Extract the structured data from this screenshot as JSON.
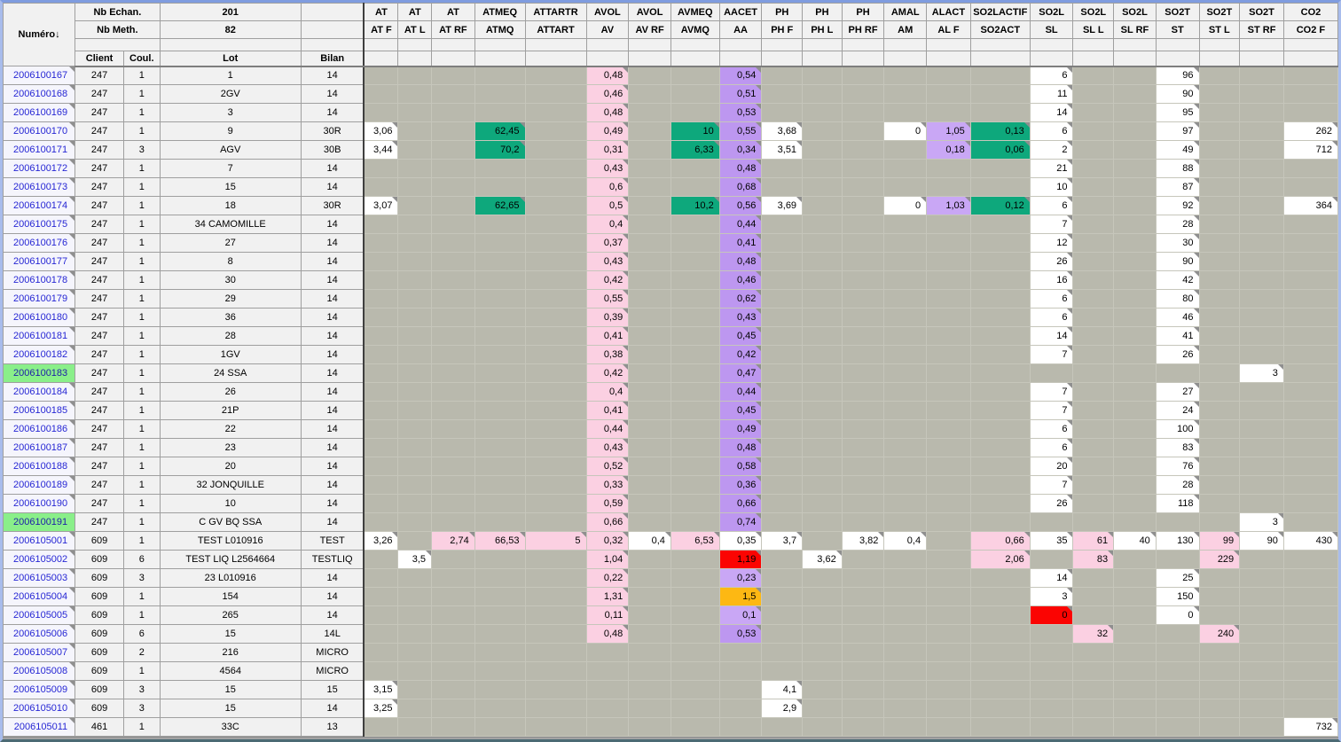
{
  "grid": {
    "corner_label": "Numéro↓",
    "summary": {
      "nb_echan_label": "Nb Echan.",
      "nb_echan_value": "201",
      "nb_meth_label": "Nb Meth.",
      "nb_meth_value": "82"
    },
    "fixed_columns": [
      "Client",
      "Coul.",
      "Lot",
      "Bilan"
    ],
    "analysis_columns": [
      {
        "key": "ATF",
        "group": "AT",
        "code": "AT F"
      },
      {
        "key": "ATL",
        "group": "AT",
        "code": "AT L"
      },
      {
        "key": "ATRF",
        "group": "AT",
        "code": "AT RF"
      },
      {
        "key": "ATMQ",
        "group": "ATMEQ",
        "code": "ATMQ"
      },
      {
        "key": "ATTART",
        "group": "ATTARTR",
        "code": "ATTART"
      },
      {
        "key": "AV",
        "group": "AVOL",
        "code": "AV"
      },
      {
        "key": "AVRF",
        "group": "AVOL",
        "code": "AV RF"
      },
      {
        "key": "AVMQ",
        "group": "AVMEQ",
        "code": "AVMQ"
      },
      {
        "key": "AA",
        "group": "AACET",
        "code": "AA"
      },
      {
        "key": "PHF",
        "group": "PH",
        "code": "PH F"
      },
      {
        "key": "PHL",
        "group": "PH",
        "code": "PH L"
      },
      {
        "key": "PHRF",
        "group": "PH",
        "code": "PH RF"
      },
      {
        "key": "AM",
        "group": "AMAL",
        "code": "AM"
      },
      {
        "key": "ALF",
        "group": "ALACT",
        "code": "AL F"
      },
      {
        "key": "SO2ACT",
        "group": "SO2LACTIF",
        "code": "SO2ACT"
      },
      {
        "key": "SL",
        "group": "SO2L",
        "code": "SL"
      },
      {
        "key": "SLL",
        "group": "SO2L",
        "code": "SL L"
      },
      {
        "key": "SLRF",
        "group": "SO2L",
        "code": "SL RF"
      },
      {
        "key": "ST",
        "group": "SO2T",
        "code": "ST"
      },
      {
        "key": "STL",
        "group": "SO2T",
        "code": "ST L"
      },
      {
        "key": "STRF",
        "group": "SO2T",
        "code": "ST RF"
      },
      {
        "key": "CO2F",
        "group": "CO2",
        "code": "CO2 F"
      }
    ],
    "colors": {
      "empty_cell": "#b9b9ad",
      "white": "#ffffff",
      "pink": "#fbd0e2",
      "purple": "#bd97f0",
      "light_purple": "#c9a7f5",
      "green": "#0ea87c",
      "red": "#fb0402",
      "orange": "#fdb813",
      "row_highlight": "#8aef8a",
      "number_text": "#2626d4"
    },
    "rows": [
      {
        "n": "2006100167",
        "c": "247",
        "co": "1",
        "l": "1",
        "b": "14",
        "v": {
          "AV": [
            "0,48",
            "p"
          ],
          "AA": [
            "0,54",
            "v"
          ],
          "SL": [
            "6",
            "w"
          ],
          "ST": [
            "96",
            "w"
          ]
        }
      },
      {
        "n": "2006100168",
        "c": "247",
        "co": "1",
        "l": "2GV",
        "b": "14",
        "v": {
          "AV": [
            "0,46",
            "p"
          ],
          "AA": [
            "0,51",
            "v"
          ],
          "SL": [
            "11",
            "w"
          ],
          "ST": [
            "90",
            "w"
          ]
        }
      },
      {
        "n": "2006100169",
        "c": "247",
        "co": "1",
        "l": "3",
        "b": "14",
        "v": {
          "AV": [
            "0,48",
            "p"
          ],
          "AA": [
            "0,53",
            "v"
          ],
          "SL": [
            "14",
            "w"
          ],
          "ST": [
            "95",
            "w"
          ]
        }
      },
      {
        "n": "2006100170",
        "c": "247",
        "co": "1",
        "l": "9",
        "b": "30R",
        "v": {
          "ATF": [
            "3,06",
            "w"
          ],
          "ATMQ": [
            "62,45",
            "g"
          ],
          "AV": [
            "0,49",
            "p"
          ],
          "AVMQ": [
            "10",
            "g"
          ],
          "AA": [
            "0,55",
            "v"
          ],
          "PHF": [
            "3,68",
            "w"
          ],
          "AM": [
            "0",
            "w"
          ],
          "ALF": [
            "1,05",
            "l"
          ],
          "SO2ACT": [
            "0,13",
            "g"
          ],
          "SL": [
            "6",
            "w"
          ],
          "ST": [
            "97",
            "w"
          ],
          "CO2F": [
            "262",
            "w"
          ]
        }
      },
      {
        "n": "2006100171",
        "c": "247",
        "co": "3",
        "l": "AGV",
        "b": "30B",
        "v": {
          "ATF": [
            "3,44",
            "w"
          ],
          "ATMQ": [
            "70,2",
            "g"
          ],
          "AV": [
            "0,31",
            "p"
          ],
          "AVMQ": [
            "6,33",
            "g"
          ],
          "AA": [
            "0,34",
            "v"
          ],
          "PHF": [
            "3,51",
            "w"
          ],
          "ALF": [
            "0,18",
            "l"
          ],
          "SO2ACT": [
            "0,06",
            "g"
          ],
          "SL": [
            "2",
            "w"
          ],
          "ST": [
            "49",
            "w"
          ],
          "CO2F": [
            "712",
            "w"
          ]
        }
      },
      {
        "n": "2006100172",
        "c": "247",
        "co": "1",
        "l": "7",
        "b": "14",
        "v": {
          "AV": [
            "0,43",
            "p"
          ],
          "AA": [
            "0,48",
            "v"
          ],
          "SL": [
            "21",
            "w"
          ],
          "ST": [
            "88",
            "w"
          ]
        }
      },
      {
        "n": "2006100173",
        "c": "247",
        "co": "1",
        "l": "15",
        "b": "14",
        "v": {
          "AV": [
            "0,6",
            "p"
          ],
          "AA": [
            "0,68",
            "v"
          ],
          "SL": [
            "10",
            "w"
          ],
          "ST": [
            "87",
            "w"
          ]
        }
      },
      {
        "n": "2006100174",
        "c": "247",
        "co": "1",
        "l": "18",
        "b": "30R",
        "v": {
          "ATF": [
            "3,07",
            "w"
          ],
          "ATMQ": [
            "62,65",
            "g"
          ],
          "AV": [
            "0,5",
            "p"
          ],
          "AVMQ": [
            "10,2",
            "g"
          ],
          "AA": [
            "0,56",
            "v"
          ],
          "PHF": [
            "3,69",
            "w"
          ],
          "AM": [
            "0",
            "w"
          ],
          "ALF": [
            "1,03",
            "l"
          ],
          "SO2ACT": [
            "0,12",
            "g"
          ],
          "SL": [
            "6",
            "w"
          ],
          "ST": [
            "92",
            "w"
          ],
          "CO2F": [
            "364",
            "w"
          ]
        }
      },
      {
        "n": "2006100175",
        "c": "247",
        "co": "1",
        "l": "34 CAMOMILLE",
        "b": "14",
        "v": {
          "AV": [
            "0,4",
            "p"
          ],
          "AA": [
            "0,44",
            "v"
          ],
          "SL": [
            "7",
            "w"
          ],
          "ST": [
            "28",
            "w"
          ]
        }
      },
      {
        "n": "2006100176",
        "c": "247",
        "co": "1",
        "l": "27",
        "b": "14",
        "v": {
          "AV": [
            "0,37",
            "p"
          ],
          "AA": [
            "0,41",
            "v"
          ],
          "SL": [
            "12",
            "w"
          ],
          "ST": [
            "30",
            "w"
          ]
        }
      },
      {
        "n": "2006100177",
        "c": "247",
        "co": "1",
        "l": "8",
        "b": "14",
        "v": {
          "AV": [
            "0,43",
            "p"
          ],
          "AA": [
            "0,48",
            "v"
          ],
          "SL": [
            "26",
            "w"
          ],
          "ST": [
            "90",
            "w"
          ]
        }
      },
      {
        "n": "2006100178",
        "c": "247",
        "co": "1",
        "l": "30",
        "b": "14",
        "v": {
          "AV": [
            "0,42",
            "p"
          ],
          "AA": [
            "0,46",
            "v"
          ],
          "SL": [
            "16",
            "w"
          ],
          "ST": [
            "42",
            "w"
          ]
        }
      },
      {
        "n": "2006100179",
        "c": "247",
        "co": "1",
        "l": "29",
        "b": "14",
        "v": {
          "AV": [
            "0,55",
            "p"
          ],
          "AA": [
            "0,62",
            "v"
          ],
          "SL": [
            "6",
            "w"
          ],
          "ST": [
            "80",
            "w"
          ]
        }
      },
      {
        "n": "2006100180",
        "c": "247",
        "co": "1",
        "l": "36",
        "b": "14",
        "v": {
          "AV": [
            "0,39",
            "p"
          ],
          "AA": [
            "0,43",
            "v"
          ],
          "SL": [
            "6",
            "w"
          ],
          "ST": [
            "46",
            "w"
          ]
        }
      },
      {
        "n": "2006100181",
        "c": "247",
        "co": "1",
        "l": "28",
        "b": "14",
        "v": {
          "AV": [
            "0,41",
            "p"
          ],
          "AA": [
            "0,45",
            "v"
          ],
          "SL": [
            "14",
            "w"
          ],
          "ST": [
            "41",
            "w"
          ]
        }
      },
      {
        "n": "2006100182",
        "c": "247",
        "co": "1",
        "l": "1GV",
        "b": "14",
        "v": {
          "AV": [
            "0,38",
            "p"
          ],
          "AA": [
            "0,42",
            "v"
          ],
          "SL": [
            "7",
            "w"
          ],
          "ST": [
            "26",
            "w"
          ]
        }
      },
      {
        "n": "2006100183",
        "h": true,
        "c": "247",
        "co": "1",
        "l": "24 SSA",
        "b": "14",
        "v": {
          "AV": [
            "0,42",
            "p"
          ],
          "AA": [
            "0,47",
            "v"
          ],
          "STRF": [
            "3",
            "w"
          ]
        }
      },
      {
        "n": "2006100184",
        "c": "247",
        "co": "1",
        "l": "26",
        "b": "14",
        "v": {
          "AV": [
            "0,4",
            "p"
          ],
          "AA": [
            "0,44",
            "v"
          ],
          "SL": [
            "7",
            "w"
          ],
          "ST": [
            "27",
            "w"
          ]
        }
      },
      {
        "n": "2006100185",
        "c": "247",
        "co": "1",
        "l": "21P",
        "b": "14",
        "v": {
          "AV": [
            "0,41",
            "p"
          ],
          "AA": [
            "0,45",
            "v"
          ],
          "SL": [
            "7",
            "w"
          ],
          "ST": [
            "24",
            "w"
          ]
        }
      },
      {
        "n": "2006100186",
        "c": "247",
        "co": "1",
        "l": "22",
        "b": "14",
        "v": {
          "AV": [
            "0,44",
            "p"
          ],
          "AA": [
            "0,49",
            "v"
          ],
          "SL": [
            "6",
            "w"
          ],
          "ST": [
            "100",
            "w"
          ]
        }
      },
      {
        "n": "2006100187",
        "c": "247",
        "co": "1",
        "l": "23",
        "b": "14",
        "v": {
          "AV": [
            "0,43",
            "p"
          ],
          "AA": [
            "0,48",
            "v"
          ],
          "SL": [
            "6",
            "w"
          ],
          "ST": [
            "83",
            "w"
          ]
        }
      },
      {
        "n": "2006100188",
        "c": "247",
        "co": "1",
        "l": "20",
        "b": "14",
        "v": {
          "AV": [
            "0,52",
            "p"
          ],
          "AA": [
            "0,58",
            "v"
          ],
          "SL": [
            "20",
            "w"
          ],
          "ST": [
            "76",
            "w"
          ]
        }
      },
      {
        "n": "2006100189",
        "c": "247",
        "co": "1",
        "l": "32 JONQUILLE",
        "b": "14",
        "v": {
          "AV": [
            "0,33",
            "p"
          ],
          "AA": [
            "0,36",
            "v"
          ],
          "SL": [
            "7",
            "w"
          ],
          "ST": [
            "28",
            "w"
          ]
        }
      },
      {
        "n": "2006100190",
        "c": "247",
        "co": "1",
        "l": "10",
        "b": "14",
        "v": {
          "AV": [
            "0,59",
            "p"
          ],
          "AA": [
            "0,66",
            "v"
          ],
          "SL": [
            "26",
            "w"
          ],
          "ST": [
            "118",
            "w"
          ]
        }
      },
      {
        "n": "2006100191",
        "h": true,
        "c": "247",
        "co": "1",
        "l": "C GV BQ SSA",
        "b": "14",
        "v": {
          "AV": [
            "0,66",
            "p"
          ],
          "AA": [
            "0,74",
            "v"
          ],
          "STRF": [
            "3",
            "w"
          ]
        }
      },
      {
        "n": "2006105001",
        "c": "609",
        "co": "1",
        "l": "TEST L010916",
        "b": "TEST",
        "v": {
          "ATF": [
            "3,26",
            "w"
          ],
          "ATRF": [
            "2,74",
            "p"
          ],
          "ATMQ": [
            "66,53",
            "p"
          ],
          "ATTART": [
            "5",
            "p"
          ],
          "AV": [
            "0,32",
            "p"
          ],
          "AVRF": [
            "0,4",
            "w"
          ],
          "AVMQ": [
            "6,53",
            "p"
          ],
          "AA": [
            "0,35",
            "w"
          ],
          "PHF": [
            "3,7",
            "w"
          ],
          "PHRF": [
            "3,82",
            "w"
          ],
          "AM": [
            "0,4",
            "w"
          ],
          "SO2ACT": [
            "0,66",
            "p"
          ],
          "SL": [
            "35",
            "w"
          ],
          "SLL": [
            "61",
            "p"
          ],
          "SLRF": [
            "40",
            "w"
          ],
          "ST": [
            "130",
            "w"
          ],
          "STL": [
            "99",
            "p"
          ],
          "STRF": [
            "90",
            "w"
          ],
          "CO2F": [
            "430",
            "w"
          ]
        }
      },
      {
        "n": "2006105002",
        "c": "609",
        "co": "6",
        "l": "TEST LIQ L2564664",
        "b": "TESTLIQ",
        "v": {
          "ATL": [
            "3,5",
            "w"
          ],
          "AV": [
            "1,04",
            "p"
          ],
          "AA": [
            "1,19",
            "r"
          ],
          "PHL": [
            "3,62",
            "w"
          ],
          "SO2ACT": [
            "2,06",
            "p"
          ],
          "SLL": [
            "83",
            "p"
          ],
          "STL": [
            "229",
            "p"
          ]
        }
      },
      {
        "n": "2006105003",
        "c": "609",
        "co": "3",
        "l": "23 L010916",
        "b": "14",
        "v": {
          "AV": [
            "0,22",
            "p"
          ],
          "AA": [
            "0,23",
            "l"
          ],
          "SL": [
            "14",
            "w"
          ],
          "ST": [
            "25",
            "w"
          ]
        }
      },
      {
        "n": "2006105004",
        "c": "609",
        "co": "1",
        "l": "154",
        "b": "14",
        "v": {
          "AV": [
            "1,31",
            "p"
          ],
          "AA": [
            "1,5",
            "o"
          ],
          "SL": [
            "3",
            "w"
          ],
          "ST": [
            "150",
            "w"
          ]
        }
      },
      {
        "n": "2006105005",
        "c": "609",
        "co": "1",
        "l": "265",
        "b": "14",
        "v": {
          "AV": [
            "0,11",
            "p"
          ],
          "AA": [
            "0,1",
            "l"
          ],
          "SL": [
            "0",
            "r"
          ],
          "ST": [
            "0",
            "w"
          ]
        }
      },
      {
        "n": "2006105006",
        "c": "609",
        "co": "6",
        "l": "15",
        "b": "14L",
        "v": {
          "AV": [
            "0,48",
            "p"
          ],
          "AA": [
            "0,53",
            "v"
          ],
          "SLL": [
            "32",
            "p"
          ],
          "STL": [
            "240",
            "p"
          ]
        }
      },
      {
        "n": "2006105007",
        "c": "609",
        "co": "2",
        "l": "216",
        "b": "MICRO",
        "v": {}
      },
      {
        "n": "2006105008",
        "c": "609",
        "co": "1",
        "l": "4564",
        "b": "MICRO",
        "v": {}
      },
      {
        "n": "2006105009",
        "c": "609",
        "co": "3",
        "l": "15",
        "b": "15",
        "v": {
          "ATF": [
            "3,15",
            "w"
          ],
          "PHF": [
            "4,1",
            "w"
          ]
        }
      },
      {
        "n": "2006105010",
        "c": "609",
        "co": "3",
        "l": "15",
        "b": "14",
        "v": {
          "ATF": [
            "3,25",
            "w"
          ],
          "PHF": [
            "2,9",
            "w"
          ]
        }
      },
      {
        "n": "2006105011",
        "c": "461",
        "co": "1",
        "l": "33C",
        "b": "13",
        "v": {
          "CO2F": [
            "732",
            "w"
          ]
        }
      }
    ]
  }
}
